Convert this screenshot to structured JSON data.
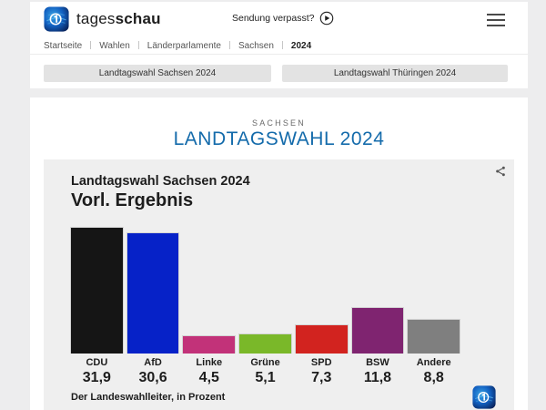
{
  "brand": {
    "word_light": "tages",
    "word_bold": "schau"
  },
  "header": {
    "broadcast_link": "Sendung verpasst?",
    "breadcrumb": [
      "Startseite",
      "Wahlen",
      "Länderparlamente",
      "Sachsen",
      "2024"
    ],
    "nav_buttons": [
      "Landtagswahl Sachsen 2024",
      "Landtagswahl Thüringen 2024"
    ]
  },
  "main": {
    "eyebrow": "SACHSEN",
    "title": "LANDTAGSWAHL 2024",
    "title_color": "#146bab"
  },
  "chart_data": {
    "type": "bar",
    "title": "Landtagswahl Sachsen 2024",
    "subtitle": "Vorl. Ergebnis",
    "categories": [
      "CDU",
      "AfD",
      "Linke",
      "Grüne",
      "SPD",
      "BSW",
      "Andere"
    ],
    "values": [
      31.9,
      30.6,
      4.5,
      5.1,
      7.3,
      11.8,
      8.8
    ],
    "value_labels": [
      "31,9",
      "30,6",
      "4,5",
      "5,1",
      "7,3",
      "11,8",
      "8,8"
    ],
    "bar_colors": [
      "#151515",
      "#0622c8",
      "#c23279",
      "#7ab829",
      "#d2231f",
      "#7f2470",
      "#7f7f7f"
    ],
    "unit": "Prozent",
    "ylim": [
      0,
      32
    ],
    "grid": false,
    "legend": false,
    "source": "Der Landeswahlleiter, in Prozent"
  }
}
